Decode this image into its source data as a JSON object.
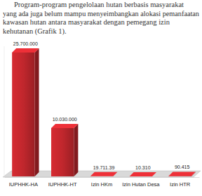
{
  "paragraph": [
    "Program-program pengelolaan hutan berbasis masyarakat",
    "yang ada juga belum mampu menyeimbangkan alokasi pemanfaatan",
    "kawasan hutan antara masyarakat dengan pemegang izin",
    "kehutanan (Grafik 1)."
  ],
  "chart_data": {
    "type": "bar",
    "categories": [
      "IUPHHK-HA",
      "IUPHHK-HT",
      "Izin HKm",
      "Izin Hutan Desa",
      "Izin HTR"
    ],
    "values": [
      25700000,
      10030000,
      19711.39,
      10310,
      90415
    ],
    "value_labels": [
      "25.700.000",
      "10.030.000",
      "19.711.39",
      "10.310",
      "90.415"
    ],
    "color": "#c0272d",
    "ylim": [
      0,
      27000000
    ],
    "data_labels": true,
    "tick_labels": "x"
  }
}
